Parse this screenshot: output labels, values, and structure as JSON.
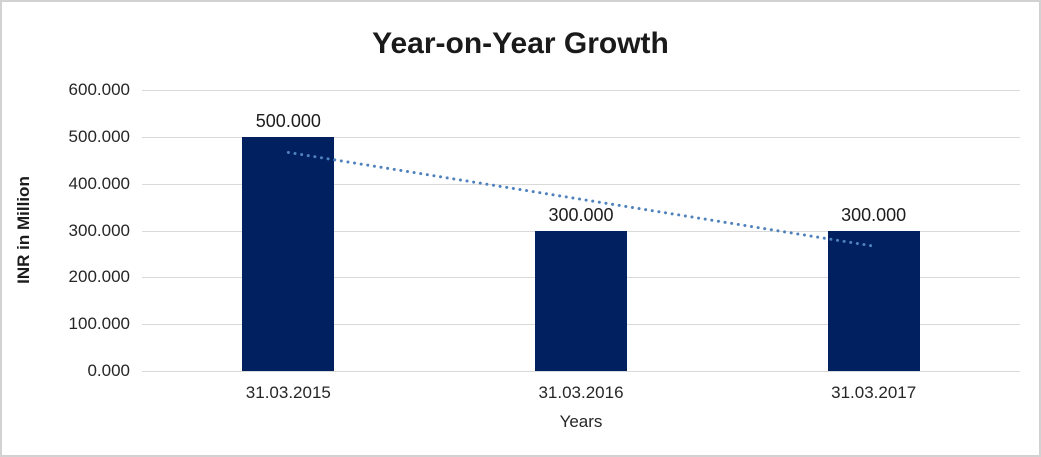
{
  "window": {
    "background_color": "#ffffff",
    "border_color": "#d2d2d2"
  },
  "chart_data": {
    "type": "bar",
    "title": "Year-on-Year Growth",
    "xlabel": "Years",
    "ylabel": "INR in Million",
    "categories": [
      "31.03.2015",
      "31.03.2016",
      "31.03.2017"
    ],
    "values": [
      500,
      300,
      300
    ],
    "value_labels": [
      "500.000",
      "300.000",
      "300.000"
    ],
    "ylim": [
      0,
      600
    ],
    "ytick_step": 100,
    "ytick_labels": [
      "0.000",
      "100.000",
      "200.000",
      "300.000",
      "400.000",
      "500.000",
      "600.000"
    ],
    "grid": true,
    "legend": "none",
    "bar_color": "#002060",
    "gridline_color": "#d9d9d9",
    "text_color": "#262626",
    "trendline": {
      "type": "linear",
      "style": "dotted",
      "color": "#4f81bd",
      "start_value": 466.67,
      "end_value": 266.67
    }
  }
}
